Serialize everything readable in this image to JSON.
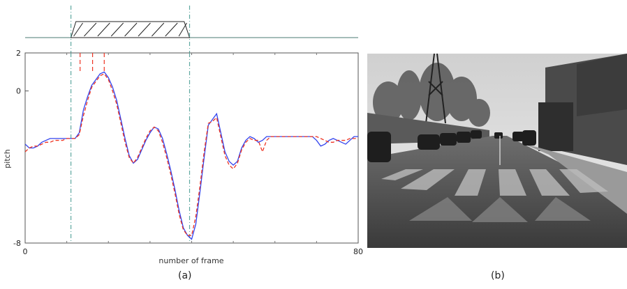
{
  "captions": {
    "a": "(a)",
    "b": "(b)"
  },
  "chart_data": {
    "type": "line",
    "title": "",
    "xlabel": "number of frame",
    "ylabel": "pitch",
    "xlim": [
      0,
      80
    ],
    "ylim": [
      -8,
      2
    ],
    "x_ticks": [
      {
        "value": 0,
        "label": "0"
      },
      {
        "value": 80,
        "label": "80"
      }
    ],
    "y_ticks": [
      {
        "value": 2,
        "label": "2"
      },
      {
        "value": 0,
        "label": "0"
      },
      {
        "value": -8,
        "label": "-8"
      }
    ],
    "grid": false,
    "legend": "none",
    "series": [
      {
        "color": "#3344ee",
        "style": "solid",
        "x": [
          0,
          1,
          2,
          3,
          4,
          5,
          6,
          7,
          8,
          9,
          10,
          11,
          12,
          13,
          14,
          15,
          16,
          17,
          18,
          19,
          20,
          21,
          22,
          23,
          24,
          25,
          26,
          27,
          28,
          29,
          30,
          31,
          32,
          33,
          34,
          35,
          36,
          37,
          38,
          39,
          40,
          41,
          42,
          43,
          44,
          45,
          46,
          47,
          48,
          49,
          50,
          51,
          52,
          53,
          54,
          55,
          56,
          57,
          58,
          59,
          60,
          61,
          62,
          63,
          64,
          65,
          66,
          67,
          68,
          69,
          70,
          71,
          72,
          73,
          74,
          75,
          76,
          77,
          78,
          79,
          80
        ],
        "y": [
          -2.8,
          -3.0,
          -3.0,
          -2.9,
          -2.7,
          -2.6,
          -2.5,
          -2.5,
          -2.5,
          -2.5,
          -2.5,
          -2.5,
          -2.5,
          -2.2,
          -1.0,
          -0.3,
          0.3,
          0.6,
          0.9,
          1.0,
          0.7,
          0.2,
          -0.5,
          -1.5,
          -2.5,
          -3.4,
          -3.8,
          -3.6,
          -3.1,
          -2.6,
          -2.2,
          -1.9,
          -2.0,
          -2.5,
          -3.3,
          -4.2,
          -5.2,
          -6.3,
          -7.2,
          -7.6,
          -7.8,
          -7.0,
          -5.3,
          -3.5,
          -1.8,
          -1.5,
          -1.2,
          -2.2,
          -3.2,
          -3.7,
          -3.9,
          -3.7,
          -3.0,
          -2.6,
          -2.4,
          -2.5,
          -2.7,
          -2.6,
          -2.4,
          -2.4,
          -2.4,
          -2.4,
          -2.4,
          -2.4,
          -2.4,
          -2.4,
          -2.4,
          -2.4,
          -2.4,
          -2.4,
          -2.6,
          -2.9,
          -2.8,
          -2.6,
          -2.5,
          -2.6,
          -2.7,
          -2.8,
          -2.6,
          -2.4,
          -2.4
        ]
      },
      {
        "color": "#ee3322",
        "style": "dashed",
        "x": [
          0,
          1,
          2,
          3,
          4,
          5,
          6,
          7,
          8,
          9,
          10,
          11,
          12,
          13,
          14,
          15,
          16,
          17,
          18,
          19,
          20,
          21,
          22,
          23,
          24,
          25,
          26,
          27,
          28,
          29,
          30,
          31,
          32,
          33,
          34,
          35,
          36,
          37,
          38,
          39,
          40,
          41,
          42,
          43,
          44,
          45,
          46,
          47,
          48,
          49,
          50,
          51,
          52,
          53,
          54,
          55,
          56,
          57,
          58,
          59,
          60,
          61,
          62,
          63,
          64,
          65,
          66,
          67,
          68,
          69,
          70,
          71,
          72,
          73,
          74,
          75,
          76,
          77,
          78,
          79,
          80
        ],
        "y": [
          -3.2,
          -3.0,
          -2.9,
          -2.9,
          -2.8,
          -2.7,
          -2.7,
          -2.6,
          -2.6,
          -2.6,
          -2.5,
          -2.5,
          -2.5,
          -2.3,
          -1.3,
          -0.5,
          0.2,
          0.5,
          0.8,
          0.9,
          0.6,
          0.0,
          -0.7,
          -1.7,
          -2.7,
          -3.5,
          -3.8,
          -3.5,
          -3.0,
          -2.5,
          -2.1,
          -1.9,
          -2.1,
          -2.7,
          -3.5,
          -4.4,
          -5.4,
          -6.5,
          -7.3,
          -7.6,
          -7.6,
          -6.6,
          -5.0,
          -3.2,
          -1.7,
          -1.6,
          -1.4,
          -2.4,
          -3.4,
          -3.9,
          -4.1,
          -3.8,
          -3.1,
          -2.7,
          -2.5,
          -2.6,
          -2.6,
          -3.2,
          -2.6,
          -2.4,
          -2.4,
          -2.4,
          -2.4,
          -2.4,
          -2.4,
          -2.4,
          -2.4,
          -2.4,
          -2.4,
          -2.4,
          -2.4,
          -2.5,
          -2.6,
          -2.7,
          -2.7,
          -2.6,
          -2.6,
          -2.6,
          -2.5,
          -2.5,
          -2.5
        ]
      }
    ],
    "vlines": [
      {
        "x": 11.0,
        "color": "#5fa8a0",
        "style": "dashdot"
      },
      {
        "x": 39.5,
        "color": "#5fa8a0",
        "style": "dashdot"
      },
      {
        "x": 13.2,
        "color": "#ee3322",
        "style": "dashed",
        "y_from": 0.9,
        "y_to": 2
      },
      {
        "x": 16.2,
        "color": "#ee3322",
        "style": "dashed",
        "y_from": 0.9,
        "y_to": 2
      },
      {
        "x": 19.0,
        "color": "#ee3322",
        "style": "dashed",
        "y_from": 0.9,
        "y_to": 2
      }
    ],
    "pulse": {
      "x_start": 11.0,
      "x_top_start": 12.2,
      "x_top_end": 38.2,
      "x_end": 39.5,
      "hatched": true
    }
  }
}
